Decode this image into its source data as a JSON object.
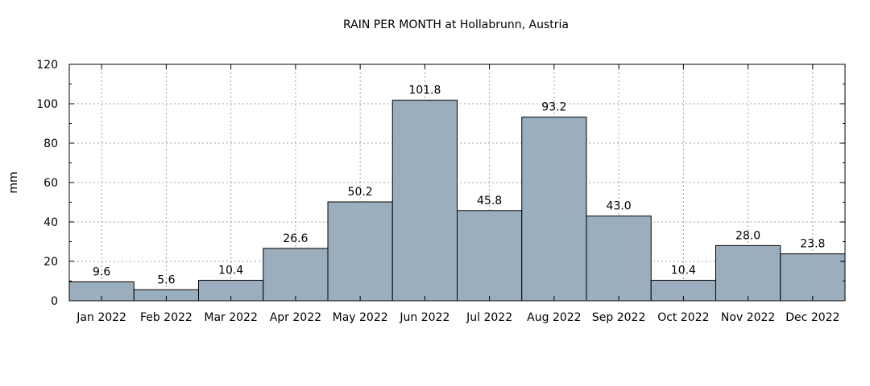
{
  "chart_data": {
    "type": "bar",
    "title": "RAIN PER MONTH at Hollabrunn, Austria",
    "xlabel": "",
    "ylabel": "mm",
    "ylim": [
      0,
      120
    ],
    "yticks": [
      0,
      20,
      40,
      60,
      80,
      100,
      120
    ],
    "grid": true,
    "bar_color": "#9aaebd",
    "categories": [
      "Jan 2022",
      "Feb 2022",
      "Mar 2022",
      "Apr 2022",
      "May 2022",
      "Jun 2022",
      "Jul 2022",
      "Aug 2022",
      "Sep 2022",
      "Oct 2022",
      "Nov 2022",
      "Dec 2022"
    ],
    "values": [
      9.6,
      5.6,
      10.4,
      26.6,
      50.2,
      101.8,
      45.8,
      93.2,
      43.0,
      10.4,
      28.0,
      23.8
    ],
    "data_labels": [
      "9.6",
      "5.6",
      "10.4",
      "26.6",
      "50.2",
      "101.8",
      "45.8",
      "93.2",
      "43.0",
      "10.4",
      "28.0",
      "23.8"
    ]
  }
}
